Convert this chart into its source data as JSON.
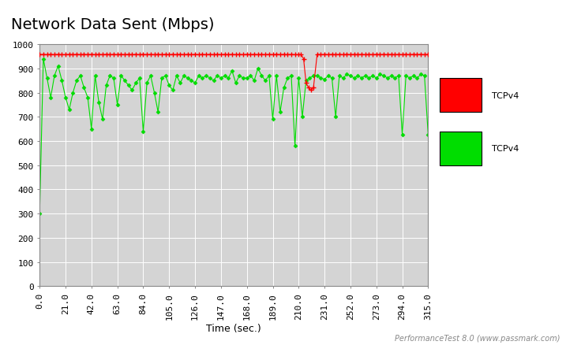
{
  "title": "Network Data Sent (Mbps)",
  "xlabel": "Time (sec.)",
  "ylabel": "",
  "watermark": "PerformanceTest 8.0 (www.passmark.com)",
  "xlim": [
    0,
    315
  ],
  "ylim": [
    0,
    1000
  ],
  "yticks": [
    0,
    100,
    200,
    300,
    400,
    500,
    600,
    700,
    800,
    900,
    1000
  ],
  "xticks": [
    0.0,
    21.0,
    42.0,
    63.0,
    84.0,
    105.0,
    126.0,
    147.0,
    168.0,
    189.0,
    210.0,
    231.0,
    252.0,
    273.0,
    294.0,
    315.0
  ],
  "fig_bg": "#ffffff",
  "plot_bg": "#d4d4d4",
  "grid_color": "#ffffff",
  "red_color": "#ff0000",
  "green_color": "#00dd00",
  "legend1": "TCPv4",
  "legend2": "TCPv4",
  "title_fontsize": 14,
  "tick_fontsize": 8,
  "xlabel_fontsize": 9,
  "watermark_fontsize": 7,
  "red_x": [
    0,
    3,
    6,
    9,
    12,
    15,
    18,
    21,
    24,
    27,
    30,
    33,
    36,
    39,
    42,
    45,
    48,
    51,
    54,
    57,
    60,
    63,
    66,
    69,
    72,
    75,
    78,
    81,
    84,
    87,
    90,
    93,
    96,
    99,
    102,
    105,
    108,
    111,
    114,
    117,
    120,
    123,
    126,
    129,
    132,
    135,
    138,
    141,
    144,
    147,
    150,
    153,
    156,
    159,
    162,
    165,
    168,
    171,
    174,
    177,
    180,
    183,
    186,
    189,
    192,
    195,
    198,
    201,
    204,
    207,
    210,
    212,
    214,
    216,
    218,
    220,
    222,
    225,
    228,
    231,
    234,
    237,
    240,
    243,
    246,
    249,
    252,
    255,
    258,
    261,
    264,
    267,
    270,
    273,
    276,
    279,
    282,
    285,
    288,
    291,
    294,
    297,
    300,
    303,
    306,
    309,
    312,
    315
  ],
  "red_y": [
    957,
    958,
    957,
    958,
    957,
    958,
    957,
    957,
    958,
    957,
    958,
    957,
    958,
    957,
    958,
    957,
    958,
    957,
    958,
    957,
    958,
    957,
    958,
    957,
    958,
    957,
    958,
    957,
    958,
    957,
    958,
    957,
    958,
    957,
    958,
    957,
    958,
    957,
    958,
    957,
    958,
    957,
    958,
    957,
    958,
    957,
    958,
    957,
    958,
    957,
    958,
    957,
    958,
    957,
    958,
    957,
    958,
    957,
    958,
    957,
    958,
    957,
    958,
    957,
    958,
    957,
    958,
    957,
    958,
    957,
    957,
    957,
    940,
    840,
    820,
    810,
    820,
    958,
    957,
    958,
    957,
    958,
    957,
    958,
    957,
    958,
    957,
    958,
    957,
    958,
    957,
    958,
    957,
    958,
    957,
    958,
    957,
    958,
    957,
    958,
    957,
    958,
    957,
    958,
    957,
    958,
    957,
    958
  ],
  "green_x": [
    0,
    3,
    6,
    9,
    12,
    15,
    18,
    21,
    24,
    27,
    30,
    33,
    36,
    39,
    42,
    45,
    48,
    51,
    54,
    57,
    60,
    63,
    66,
    69,
    72,
    75,
    78,
    81,
    84,
    87,
    90,
    93,
    96,
    99,
    102,
    105,
    108,
    111,
    114,
    117,
    120,
    123,
    126,
    129,
    132,
    135,
    138,
    141,
    144,
    147,
    150,
    153,
    156,
    159,
    162,
    165,
    168,
    171,
    174,
    177,
    180,
    183,
    186,
    189,
    192,
    195,
    198,
    201,
    204,
    207,
    210,
    213,
    216,
    219,
    222,
    225,
    228,
    231,
    234,
    237,
    240,
    243,
    246,
    249,
    252,
    255,
    258,
    261,
    264,
    267,
    270,
    273,
    276,
    279,
    282,
    285,
    288,
    291,
    294,
    297,
    300,
    303,
    306,
    309,
    312,
    315
  ],
  "green_y": [
    300,
    940,
    860,
    780,
    870,
    910,
    850,
    780,
    730,
    800,
    850,
    870,
    820,
    780,
    650,
    870,
    760,
    690,
    830,
    870,
    860,
    750,
    870,
    850,
    830,
    810,
    840,
    860,
    640,
    840,
    870,
    800,
    720,
    860,
    870,
    830,
    810,
    870,
    840,
    870,
    860,
    850,
    840,
    870,
    860,
    870,
    860,
    850,
    870,
    860,
    870,
    860,
    890,
    840,
    870,
    860,
    860,
    870,
    850,
    900,
    870,
    850,
    870,
    690,
    870,
    720,
    820,
    860,
    870,
    580,
    860,
    700,
    850,
    860,
    870,
    870,
    860,
    855,
    870,
    860,
    700,
    870,
    860,
    875,
    870,
    860,
    870,
    860,
    870,
    860,
    870,
    860,
    875,
    870,
    860,
    870,
    860,
    870,
    625,
    870,
    860,
    870,
    860,
    875,
    870,
    625
  ]
}
